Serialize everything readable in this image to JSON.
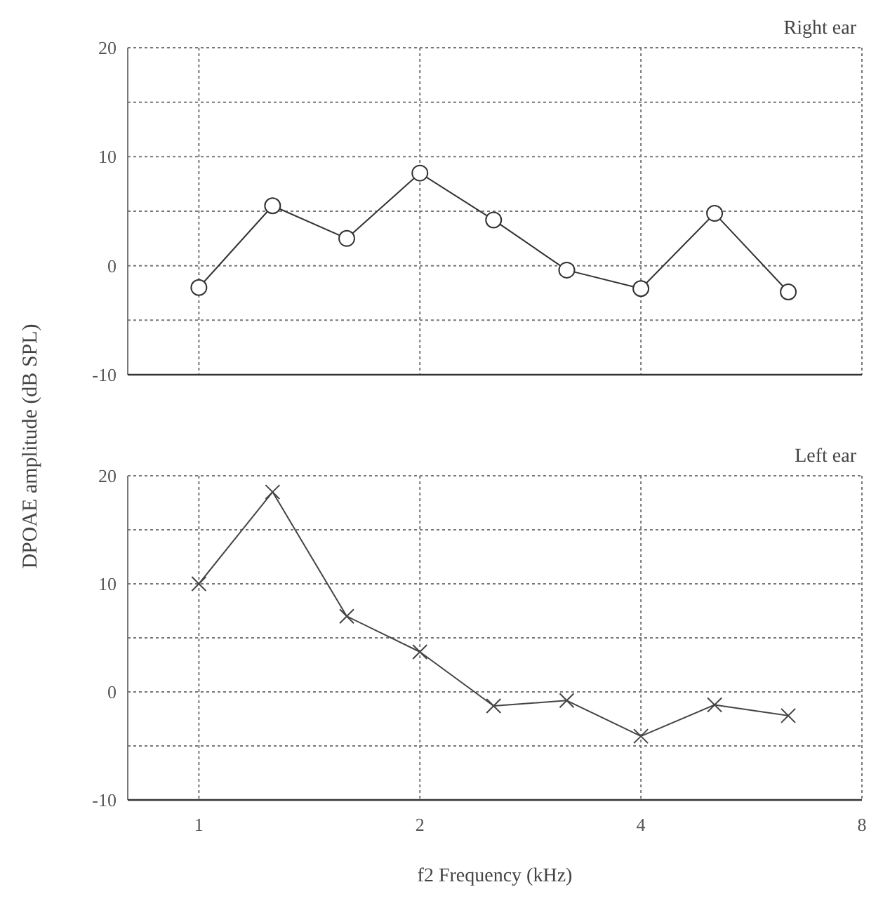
{
  "chart_data": [
    {
      "type": "line",
      "title": "Right ear",
      "ylabel": "DPOAE amplitude (dB SPL)",
      "log": "x",
      "x": [
        1,
        1.26,
        1.59,
        2,
        2.52,
        3.17,
        4,
        5.04,
        6.35
      ],
      "series": [
        {
          "color": "#333333",
          "values": [
            -2,
            5.5,
            2.5,
            8.5,
            4.2,
            -0.4,
            -2.1,
            4.8,
            -2.4
          ]
        }
      ],
      "xlim": [
        0.8,
        8
      ],
      "xticks": [
        1,
        2,
        4,
        8
      ],
      "ylim": [
        -10,
        20
      ],
      "yticks": [
        -10,
        {
          "value": -5,
          "label": null
        },
        0,
        {
          "value": 5,
          "label": null
        },
        10,
        {
          "value": 15,
          "label": null
        },
        20
      ],
      "grid": true,
      "marker": "circle",
      "line_style": "solid",
      "tick_labels": "y"
    },
    {
      "type": "line",
      "title": "Left ear",
      "xlabel": "f2 Frequency (kHz)",
      "log": "x",
      "x": [
        1,
        1.26,
        1.59,
        2,
        2.52,
        3.17,
        4,
        5.04,
        6.35
      ],
      "series": [
        {
          "color": "#444444",
          "values": [
            10,
            18.5,
            7,
            3.7,
            -1.3,
            -0.8,
            -4.1,
            -1.2,
            -2.2
          ]
        }
      ],
      "xlim": [
        0.8,
        8
      ],
      "xticks": [
        1,
        2,
        4,
        8
      ],
      "ylim": [
        -10,
        20
      ],
      "yticks": [
        -10,
        {
          "value": -5,
          "label": null
        },
        0,
        {
          "value": 5,
          "label": null
        },
        10,
        {
          "value": 15,
          "label": null
        },
        20
      ],
      "grid": true,
      "marker": "cross",
      "line_style": "solid"
    }
  ]
}
